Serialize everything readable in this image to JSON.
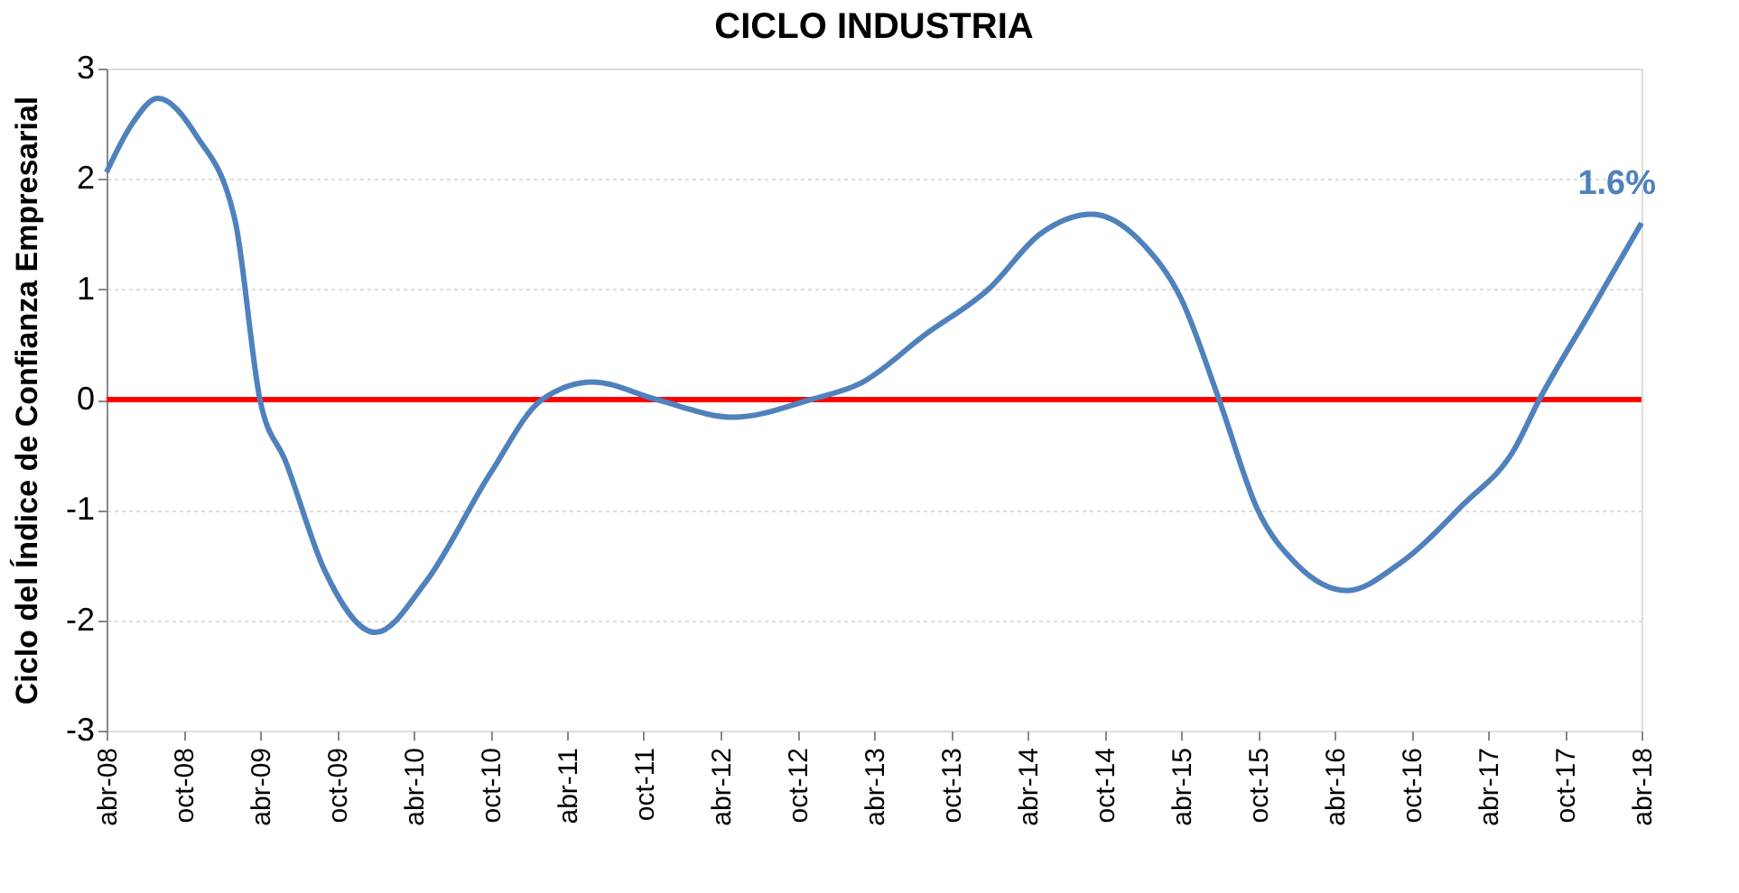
{
  "chart_data": {
    "type": "line",
    "title": "CICLO INDUSTRIA",
    "ylabel": "Ciclo del Índice de Confianza Empresarial",
    "x": [
      "2008-04",
      "2008-06",
      "2008-08",
      "2008-11",
      "2009-02",
      "2009-04",
      "2009-06",
      "2009-09",
      "2010-01",
      "2010-05",
      "2010-10",
      "2011-02",
      "2011-06",
      "2011-11",
      "2012-05",
      "2012-11",
      "2013-03",
      "2013-08",
      "2014-01",
      "2014-05",
      "2014-09",
      "2015-01",
      "2015-04",
      "2015-07",
      "2015-10",
      "2016-01",
      "2016-05",
      "2016-09",
      "2017-02",
      "2017-06",
      "2017-08",
      "2017-12",
      "2018-04"
    ],
    "series": [
      {
        "color": "#4f81bd",
        "values": [
          2.06,
          2.5,
          2.73,
          2.39,
          1.62,
          0,
          -0.56,
          -1.54,
          -2.11,
          -1.65,
          -0.67,
          0,
          0.16,
          0,
          -0.16,
          0,
          0.15,
          0.59,
          1.01,
          1.5,
          1.68,
          1.41,
          0.92,
          0,
          -1.0,
          -1.49,
          -1.73,
          -1.49,
          -0.95,
          -0.46,
          0,
          0.8,
          1.6
        ]
      }
    ],
    "xlim": [
      "2008-04",
      "2018-04"
    ],
    "xticks": [
      {
        "value": "2008-04",
        "label": "abr-08"
      },
      {
        "value": "2008-10",
        "label": "oct-08"
      },
      {
        "value": "2009-04",
        "label": "abr-09"
      },
      {
        "value": "2009-10",
        "label": "oct-09"
      },
      {
        "value": "2010-04",
        "label": "abr-10"
      },
      {
        "value": "2010-10",
        "label": "oct-10"
      },
      {
        "value": "2011-04",
        "label": "abr-11"
      },
      {
        "value": "2011-10",
        "label": "oct-11"
      },
      {
        "value": "2012-04",
        "label": "abr-12"
      },
      {
        "value": "2012-10",
        "label": "oct-12"
      },
      {
        "value": "2013-04",
        "label": "abr-13"
      },
      {
        "value": "2013-10",
        "label": "oct-13"
      },
      {
        "value": "2014-04",
        "label": "abr-14"
      },
      {
        "value": "2014-10",
        "label": "oct-14"
      },
      {
        "value": "2015-04",
        "label": "abr-15"
      },
      {
        "value": "2015-10",
        "label": "oct-15"
      },
      {
        "value": "2016-04",
        "label": "abr-16"
      },
      {
        "value": "2016-10",
        "label": "oct-16"
      },
      {
        "value": "2017-04",
        "label": "abr-17"
      },
      {
        "value": "2017-10",
        "label": "oct-17"
      },
      {
        "value": "2018-04",
        "label": "abr-18"
      }
    ],
    "ylim": [
      -3,
      3
    ],
    "yticks": [
      -3,
      -2,
      -1,
      0,
      1,
      2,
      3
    ],
    "ref_lines": [
      {
        "axis": "y",
        "value": 0,
        "color": "#ff0000"
      }
    ],
    "annotations": [
      {
        "text": "1.6%",
        "x": "2018-04",
        "y": 1.6
      }
    ],
    "grid": "y",
    "marker": "none",
    "line_style": "solid"
  }
}
